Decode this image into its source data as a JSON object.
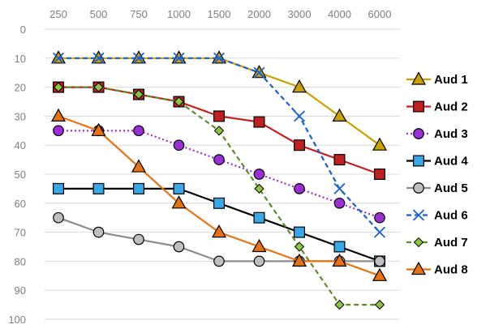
{
  "chart_data": {
    "type": "line",
    "title": "",
    "xlabel": "",
    "ylabel": "",
    "x_axis_position": "top",
    "y_inverted": true,
    "grid": "horizontal",
    "legend_position": "right",
    "categories": [
      "250",
      "500",
      "750",
      "1000",
      "1500",
      "2000",
      "3000",
      "4000",
      "6000"
    ],
    "y_ticks": [
      0,
      10,
      20,
      30,
      40,
      50,
      60,
      70,
      80,
      90,
      100
    ],
    "ylim": [
      0,
      100
    ],
    "series": [
      {
        "name": "Aud 1",
        "values": [
          10,
          10,
          10,
          10,
          10,
          15,
          20,
          30,
          40
        ],
        "color": "#c9a000",
        "marker": "triangle",
        "line_style": "solid"
      },
      {
        "name": "Aud 2",
        "values": [
          20,
          20,
          22.5,
          25,
          30,
          32,
          40,
          45,
          50
        ],
        "color": "#c0201e",
        "marker": "square",
        "line_style": "solid"
      },
      {
        "name": "Aud 3",
        "values": [
          35,
          35,
          35,
          40,
          45,
          50,
          55,
          60,
          65
        ],
        "color": "#9a2fd6",
        "marker": "circle",
        "line_style": "dotted"
      },
      {
        "name": "Aud 4",
        "values": [
          55,
          55,
          55,
          55,
          60,
          65,
          70,
          75,
          80
        ],
        "color": "#000000",
        "marker_fill": "#39a8e6",
        "marker": "square",
        "line_style": "solid"
      },
      {
        "name": "Aud 5",
        "values": [
          65,
          70,
          72.5,
          75,
          80,
          80,
          80,
          80,
          80
        ],
        "color": "#8c8c8c",
        "marker_fill": "#bfbfbf",
        "marker": "circle",
        "line_style": "solid"
      },
      {
        "name": "Aud 6",
        "values": [
          10,
          10,
          10,
          10,
          10,
          15,
          30,
          55,
          70
        ],
        "color": "#1a5fd6",
        "marker": "x",
        "line_style": "dashed"
      },
      {
        "name": "Aud 7",
        "values": [
          20,
          20,
          22.5,
          25,
          35,
          55,
          75,
          95,
          95
        ],
        "color": "#5f8a2a",
        "marker_fill": "#8cc63f",
        "marker": "diamond",
        "line_style": "dashed"
      },
      {
        "name": "Aud 8",
        "values": [
          30,
          35,
          47.5,
          60,
          70,
          75,
          80,
          80,
          85
        ],
        "color": "#e8720f",
        "marker": "triangle",
        "line_style": "solid"
      }
    ]
  }
}
